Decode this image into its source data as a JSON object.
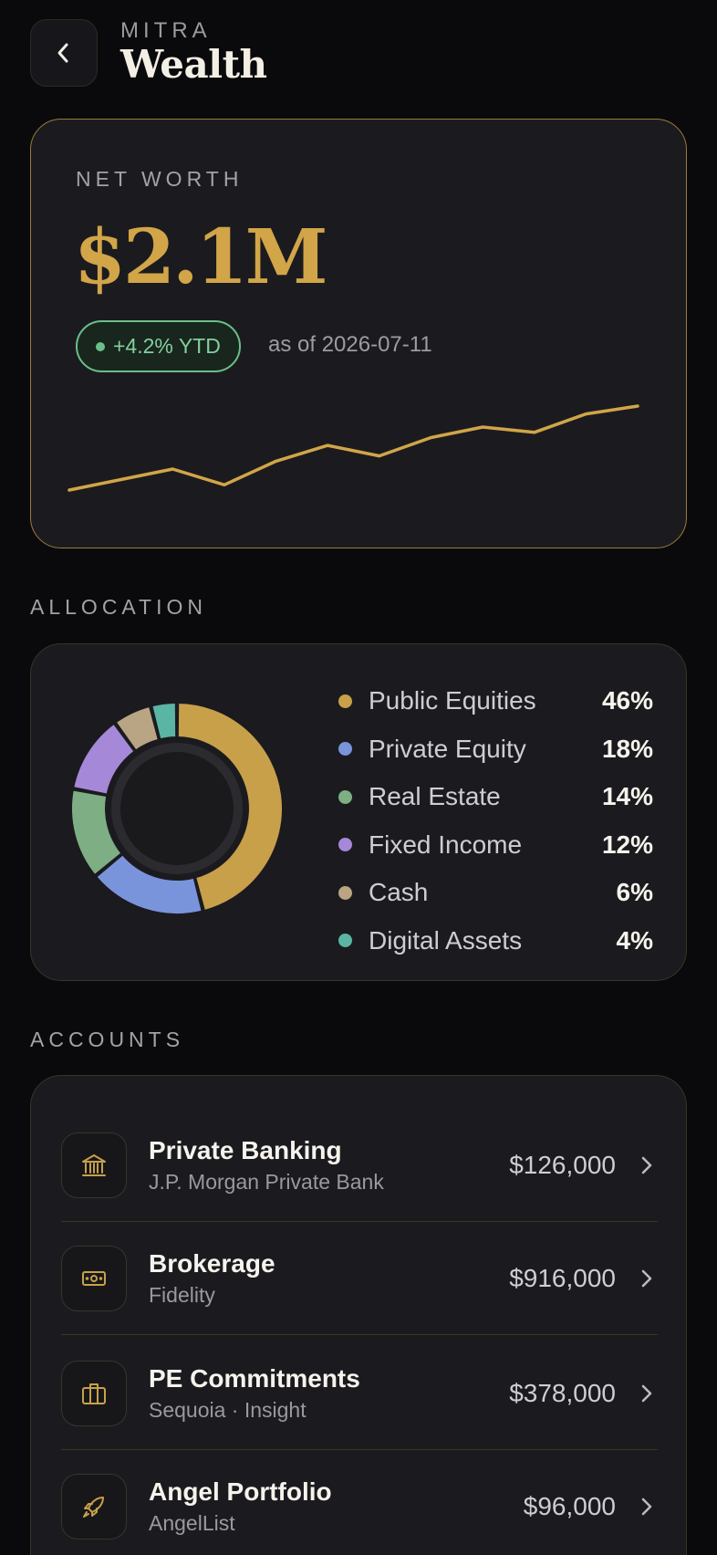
{
  "header": {
    "brand": "MITRA",
    "title": "Wealth"
  },
  "net_worth": {
    "label": "NET WORTH",
    "value": "$2.1M",
    "change": "+4.2% YTD",
    "as_of": "as of 2026-07-11",
    "trend": [
      14,
      18,
      22,
      16,
      25,
      31,
      27,
      34,
      38,
      36,
      43,
      46
    ],
    "accent": "#d1a548"
  },
  "allocation": {
    "label": "ALLOCATION",
    "items": [
      {
        "name": "Public Equities",
        "pct_label": "46%",
        "pct": 46,
        "color": "#c8a04a"
      },
      {
        "name": "Private Equity",
        "pct_label": "18%",
        "pct": 18,
        "color": "#7a94dc"
      },
      {
        "name": "Real Estate",
        "pct_label": "14%",
        "pct": 14,
        "color": "#7dae84"
      },
      {
        "name": "Fixed Income",
        "pct_label": "12%",
        "pct": 12,
        "color": "#a688d8"
      },
      {
        "name": "Cash",
        "pct_label": "6%",
        "pct": 6,
        "color": "#b9a583"
      },
      {
        "name": "Digital Assets",
        "pct_label": "4%",
        "pct": 4,
        "color": "#5bb5a4"
      }
    ]
  },
  "accounts": {
    "label": "ACCOUNTS",
    "items": [
      {
        "name": "Private Banking",
        "institution": "J.P. Morgan Private Bank",
        "amount": "$126,000",
        "icon": "bank-icon"
      },
      {
        "name": "Brokerage",
        "institution": "Fidelity",
        "amount": "$916,000",
        "icon": "cash-icon"
      },
      {
        "name": "PE Commitments",
        "institution": "Sequoia · Insight",
        "amount": "$378,000",
        "icon": "briefcase-icon"
      },
      {
        "name": "Angel Portfolio",
        "institution": "AngelList",
        "amount": "$96,000",
        "icon": "rocket-icon"
      }
    ]
  }
}
